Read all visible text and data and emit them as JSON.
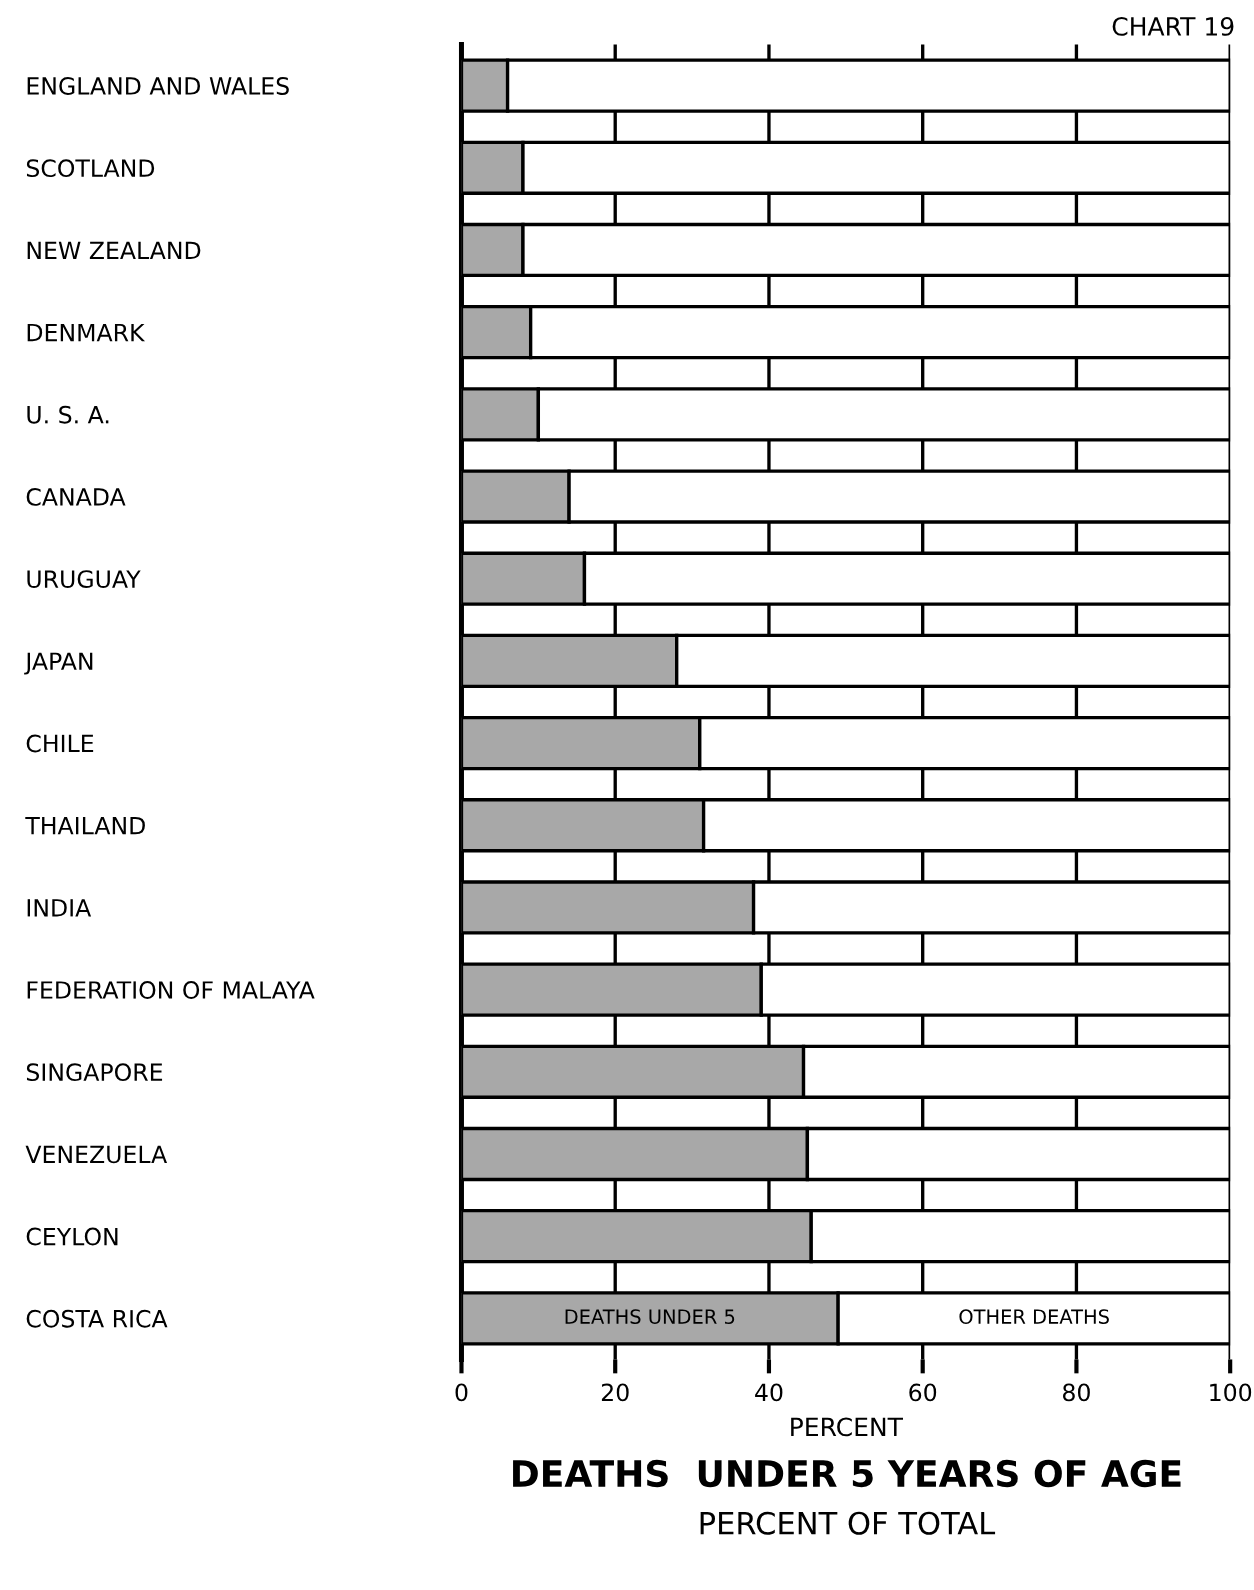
{
  "chart_data": {
    "type": "bar",
    "orientation": "horizontal",
    "stacked": true,
    "title": "DEATHS  UNDER 5 YEARS OF AGE",
    "subtitle": "PERCENT OF TOTAL",
    "xlabel": "PERCENT",
    "annotations": [
      "CHART 19"
    ],
    "categories": [
      "ENGLAND AND WALES",
      "SCOTLAND",
      "NEW ZEALAND",
      "DENMARK",
      "U. S. A.",
      "CANADA",
      "URUGUAY",
      "JAPAN",
      "CHILE",
      "THAILAND",
      "INDIA",
      "FEDERATION OF MALAYA",
      "SINGAPORE",
      "VENEZUELA",
      "CEYLON",
      "COSTA RICA"
    ],
    "series": [
      {
        "name": "DEATHS UNDER 5",
        "color": "#a8a8a8",
        "values": [
          6,
          8,
          8,
          9,
          10,
          14,
          16,
          28,
          31,
          31.5,
          38,
          39,
          44.5,
          45,
          45.5,
          49
        ]
      },
      {
        "name": "OTHER DEATHS",
        "color": "#ffffff",
        "values": [
          94,
          92,
          92,
          91,
          90,
          86,
          84,
          72,
          69,
          68.5,
          62,
          61,
          55.5,
          55,
          54.5,
          51
        ]
      }
    ],
    "xlim": [
      0,
      100
    ],
    "xticks": [
      0,
      20,
      40,
      60,
      80,
      100
    ],
    "grid": "x"
  }
}
